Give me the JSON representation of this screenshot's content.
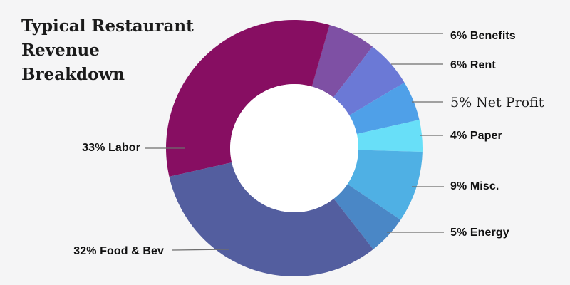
{
  "background_color": "#f5f5f6",
  "title": {
    "text": "Typical Restaurant Revenue Breakdown",
    "lines": [
      "Typical Restaurant",
      "Revenue",
      "Breakdown"
    ]
  },
  "styles": {
    "text_color": "#111111",
    "leader_line_color": "#6e6e6e",
    "hole_color": "#ffffff"
  },
  "chart_data": {
    "type": "pie",
    "subtype": "donut",
    "title": "Typical Restaurant Revenue Breakdown",
    "units": "%",
    "total": 100,
    "hole_ratio": 0.5,
    "start_angle_clockwise_from_top_deg": 16,
    "legend": "none (leader-line labels)",
    "segments": [
      {
        "label": "Benefits",
        "pct": 6,
        "display": "6% Benefits",
        "color": "#7E50A4",
        "label_side": "right"
      },
      {
        "label": "Rent",
        "pct": 6,
        "display": "6% Rent",
        "color": "#6B79D6",
        "label_side": "right"
      },
      {
        "label": "Net Profit",
        "pct": 5,
        "display": "5% Net Profit",
        "color": "#4FA0E8",
        "label_side": "right"
      },
      {
        "label": "Paper",
        "pct": 4,
        "display": "4% Paper",
        "color": "#68DFF8",
        "label_side": "right"
      },
      {
        "label": "Misc.",
        "pct": 9,
        "display": "9% Misc.",
        "color": "#4FB0E4",
        "label_side": "right"
      },
      {
        "label": "Energy",
        "pct": 5,
        "display": "5% Energy",
        "color": "#4A87C6",
        "label_side": "right"
      },
      {
        "label": "Food & Bev",
        "pct": 32,
        "display": "32% Food & Bev",
        "color": "#535E9F",
        "label_side": "left"
      },
      {
        "label": "Labor",
        "pct": 33,
        "display": "33% Labor",
        "color": "#870E62",
        "label_side": "left"
      }
    ]
  }
}
